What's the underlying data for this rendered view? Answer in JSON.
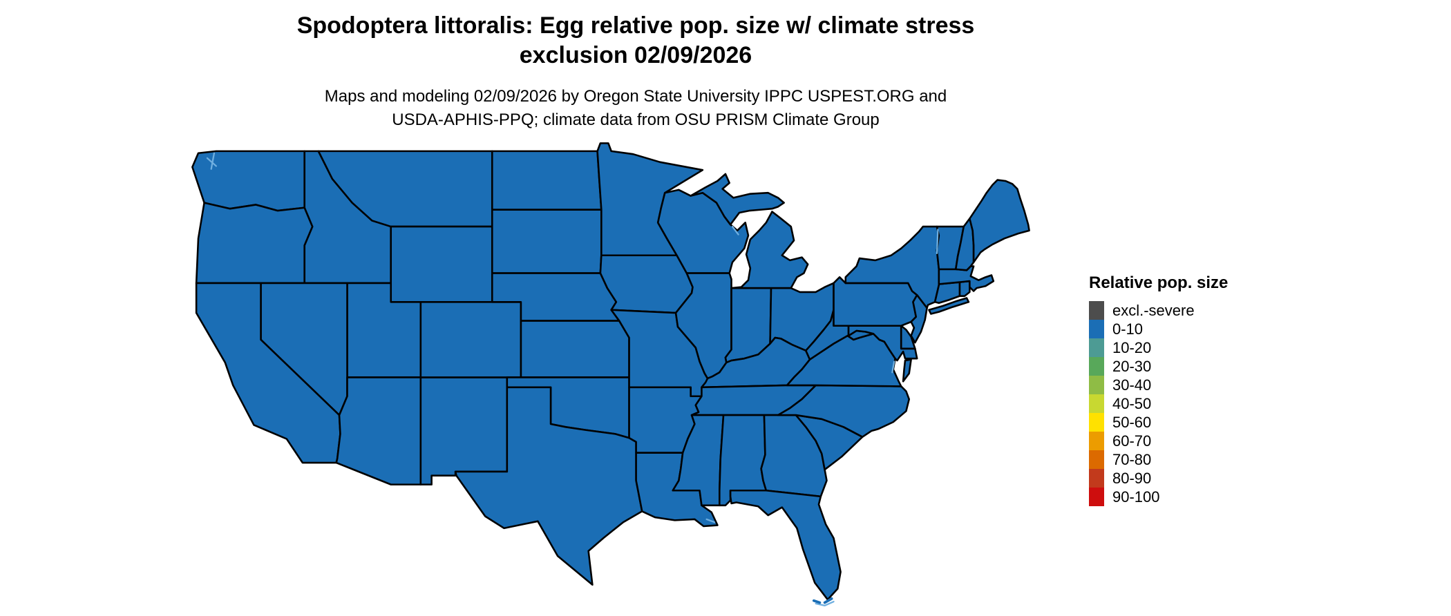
{
  "header": {
    "title_line1": "Spodoptera littoralis: Egg relative pop. size w/ climate stress",
    "title_line2": "exclusion 02/09/2026",
    "subtitle_line1": "Maps and modeling 02/09/2026 by Oregon State University IPPC USPEST.ORG and",
    "subtitle_line2": "USDA-APHIS-PPQ; climate data from OSU PRISM Climate Group"
  },
  "map": {
    "region": "contiguous United States",
    "all_states_category": "0-10",
    "fill_color": "#1B6EB5",
    "border_color": "#000000",
    "water_color": "#6FAFE0",
    "background_color": "#FFFFFF"
  },
  "legend": {
    "title": "Relative pop. size",
    "items": [
      {
        "label": "excl.-severe",
        "color": "#4D4D4D"
      },
      {
        "label": "0-10",
        "color": "#1B6EB5"
      },
      {
        "label": "10-20",
        "color": "#4D9B94"
      },
      {
        "label": "20-30",
        "color": "#58A85A"
      },
      {
        "label": "30-40",
        "color": "#8FBC45"
      },
      {
        "label": "40-50",
        "color": "#C8D831"
      },
      {
        "label": "50-60",
        "color": "#FFE100"
      },
      {
        "label": "60-70",
        "color": "#EC9C00"
      },
      {
        "label": "70-80",
        "color": "#DC6A00"
      },
      {
        "label": "80-90",
        "color": "#C23A1C"
      },
      {
        "label": "90-100",
        "color": "#CE0E0E"
      }
    ]
  }
}
